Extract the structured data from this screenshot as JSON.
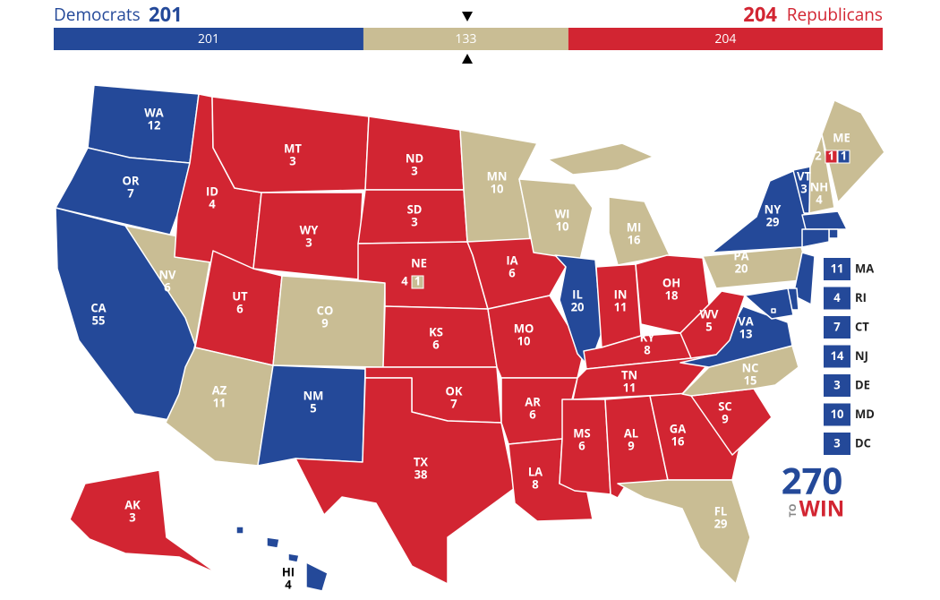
{
  "summary": {
    "dem_label": "Democrats",
    "dem_votes": 201,
    "tossup_votes": 133,
    "rep_votes": 204,
    "rep_label": "Republicans"
  },
  "colors": {
    "D": "#244999",
    "R": "#d22532",
    "T": "#c9bd94"
  },
  "states": [
    {
      "abbr": "WA",
      "votes": 12,
      "party": "D"
    },
    {
      "abbr": "OR",
      "votes": 7,
      "party": "D"
    },
    {
      "abbr": "CA",
      "votes": 55,
      "party": "D"
    },
    {
      "abbr": "NV",
      "votes": 6,
      "party": "T"
    },
    {
      "abbr": "ID",
      "votes": 4,
      "party": "R"
    },
    {
      "abbr": "MT",
      "votes": 3,
      "party": "R"
    },
    {
      "abbr": "WY",
      "votes": 3,
      "party": "R"
    },
    {
      "abbr": "UT",
      "votes": 6,
      "party": "R"
    },
    {
      "abbr": "CO",
      "votes": 9,
      "party": "T"
    },
    {
      "abbr": "AZ",
      "votes": 11,
      "party": "T"
    },
    {
      "abbr": "NM",
      "votes": 5,
      "party": "D"
    },
    {
      "abbr": "ND",
      "votes": 3,
      "party": "R"
    },
    {
      "abbr": "SD",
      "votes": 3,
      "party": "R"
    },
    {
      "abbr": "NE",
      "votes": 4,
      "party": "R",
      "districts": [
        {
          "votes": 1,
          "party": "T"
        }
      ]
    },
    {
      "abbr": "KS",
      "votes": 6,
      "party": "R"
    },
    {
      "abbr": "OK",
      "votes": 7,
      "party": "R"
    },
    {
      "abbr": "TX",
      "votes": 38,
      "party": "R"
    },
    {
      "abbr": "MN",
      "votes": 10,
      "party": "T"
    },
    {
      "abbr": "IA",
      "votes": 6,
      "party": "R"
    },
    {
      "abbr": "MO",
      "votes": 10,
      "party": "R"
    },
    {
      "abbr": "AR",
      "votes": 6,
      "party": "R"
    },
    {
      "abbr": "LA",
      "votes": 8,
      "party": "R"
    },
    {
      "abbr": "WI",
      "votes": 10,
      "party": "T"
    },
    {
      "abbr": "MI",
      "votes": 16,
      "party": "T"
    },
    {
      "abbr": "IL",
      "votes": 20,
      "party": "D"
    },
    {
      "abbr": "IN",
      "votes": 11,
      "party": "R"
    },
    {
      "abbr": "OH",
      "votes": 18,
      "party": "R"
    },
    {
      "abbr": "KY",
      "votes": 8,
      "party": "R"
    },
    {
      "abbr": "TN",
      "votes": 11,
      "party": "R"
    },
    {
      "abbr": "MS",
      "votes": 6,
      "party": "R"
    },
    {
      "abbr": "AL",
      "votes": 9,
      "party": "R"
    },
    {
      "abbr": "GA",
      "votes": 16,
      "party": "R"
    },
    {
      "abbr": "FL",
      "votes": 29,
      "party": "T"
    },
    {
      "abbr": "SC",
      "votes": 9,
      "party": "R"
    },
    {
      "abbr": "NC",
      "votes": 15,
      "party": "T"
    },
    {
      "abbr": "VA",
      "votes": 13,
      "party": "D"
    },
    {
      "abbr": "WV",
      "votes": 5,
      "party": "R"
    },
    {
      "abbr": "PA",
      "votes": 20,
      "party": "T"
    },
    {
      "abbr": "NY",
      "votes": 29,
      "party": "D"
    },
    {
      "abbr": "VT",
      "votes": 3,
      "party": "D"
    },
    {
      "abbr": "NH",
      "votes": 4,
      "party": "T"
    },
    {
      "abbr": "ME",
      "votes": 2,
      "party": "T",
      "districts": [
        {
          "votes": 1,
          "party": "R"
        },
        {
          "votes": 1,
          "party": "D"
        }
      ]
    },
    {
      "abbr": "AK",
      "votes": 3,
      "party": "R"
    },
    {
      "abbr": "HI",
      "votes": 4,
      "party": "D"
    }
  ],
  "small_states": [
    {
      "abbr": "MA",
      "votes": 11,
      "party": "D"
    },
    {
      "abbr": "RI",
      "votes": 4,
      "party": "D"
    },
    {
      "abbr": "CT",
      "votes": 7,
      "party": "D"
    },
    {
      "abbr": "NJ",
      "votes": 14,
      "party": "D"
    },
    {
      "abbr": "DE",
      "votes": 3,
      "party": "D"
    },
    {
      "abbr": "MD",
      "votes": 10,
      "party": "D"
    },
    {
      "abbr": "DC",
      "votes": 3,
      "party": "D"
    }
  ],
  "logo": {
    "number": "270",
    "small": "TO",
    "word": "WIN"
  }
}
